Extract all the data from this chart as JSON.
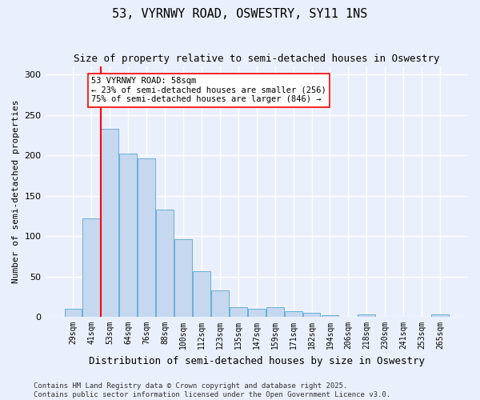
{
  "title": "53, VYRNWY ROAD, OSWESTRY, SY11 1NS",
  "subtitle": "Size of property relative to semi-detached houses in Oswestry",
  "xlabel": "Distribution of semi-detached houses by size in Oswestry",
  "ylabel": "Number of semi-detached properties",
  "categories": [
    "29sqm",
    "41sqm",
    "53sqm",
    "64sqm",
    "76sqm",
    "88sqm",
    "100sqm",
    "112sqm",
    "123sqm",
    "135sqm",
    "147sqm",
    "159sqm",
    "171sqm",
    "182sqm",
    "194sqm",
    "206sqm",
    "218sqm",
    "230sqm",
    "241sqm",
    "253sqm",
    "265sqm"
  ],
  "values": [
    10,
    122,
    233,
    202,
    196,
    133,
    96,
    57,
    33,
    12,
    10,
    12,
    7,
    5,
    2,
    0,
    3,
    0,
    0,
    0,
    3
  ],
  "bar_color": "#c5d8f0",
  "bar_edge_color": "#6aaed6",
  "vline_x": 1.5,
  "vline_color": "red",
  "annotation_text": "53 VYRNWY ROAD: 58sqm\n← 23% of semi-detached houses are smaller (256)\n75% of semi-detached houses are larger (846) →",
  "annotation_box_color": "white",
  "annotation_box_edge_color": "red",
  "ylim": [
    0,
    310
  ],
  "yticks": [
    0,
    50,
    100,
    150,
    200,
    250,
    300
  ],
  "background_color": "#eaf0fb",
  "grid_color": "white",
  "footer": "Contains HM Land Registry data © Crown copyright and database right 2025.\nContains public sector information licensed under the Open Government Licence v3.0.",
  "title_fontsize": 11,
  "subtitle_fontsize": 9,
  "annotation_fontsize": 7.5,
  "footer_fontsize": 6.5,
  "ylabel_fontsize": 8,
  "xlabel_fontsize": 9
}
